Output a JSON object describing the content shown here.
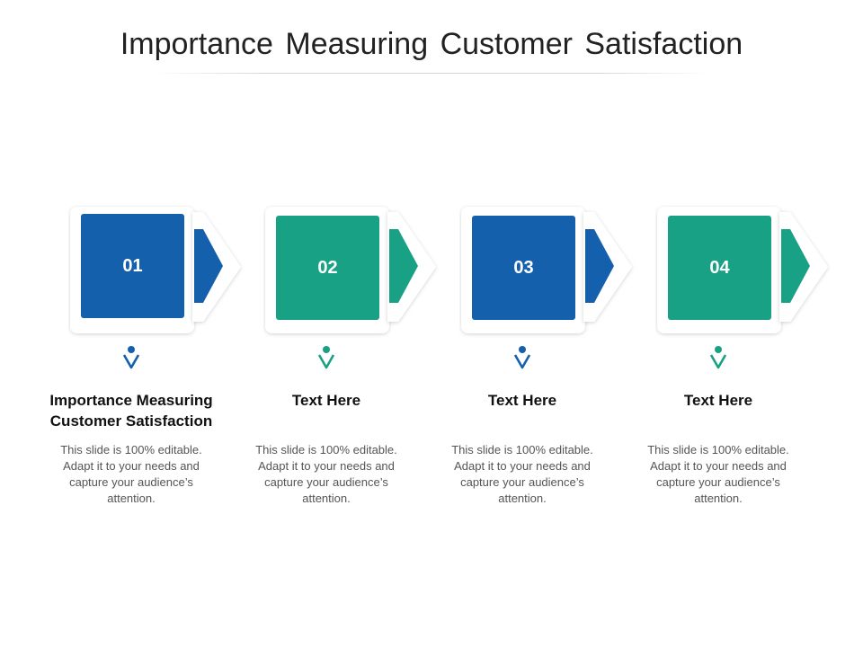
{
  "title": "Importance Measuring Customer Satisfaction",
  "colors": {
    "blue": "#1560ac",
    "teal": "#19a185"
  },
  "steps": [
    {
      "number": "01",
      "heading": "Importance Measuring Customer Satisfaction",
      "body": "This slide is 100% editable. Adapt it to your needs and capture your audience’s attention.",
      "color": "blue"
    },
    {
      "number": "02",
      "heading": "Text Here",
      "body": "This slide is 100% editable. Adapt it to your needs and capture your audience’s attention.",
      "color": "teal"
    },
    {
      "number": "03",
      "heading": "Text Here",
      "body": "This slide is 100% editable. Adapt it to your needs and capture your audience’s attention.",
      "color": "blue"
    },
    {
      "number": "04",
      "heading": "Text Here",
      "body": "This slide is 100% editable. Adapt it to your needs and capture your audience’s attention.",
      "color": "teal"
    }
  ],
  "icons": [
    "pin-icon",
    "arrow-right-icon"
  ]
}
